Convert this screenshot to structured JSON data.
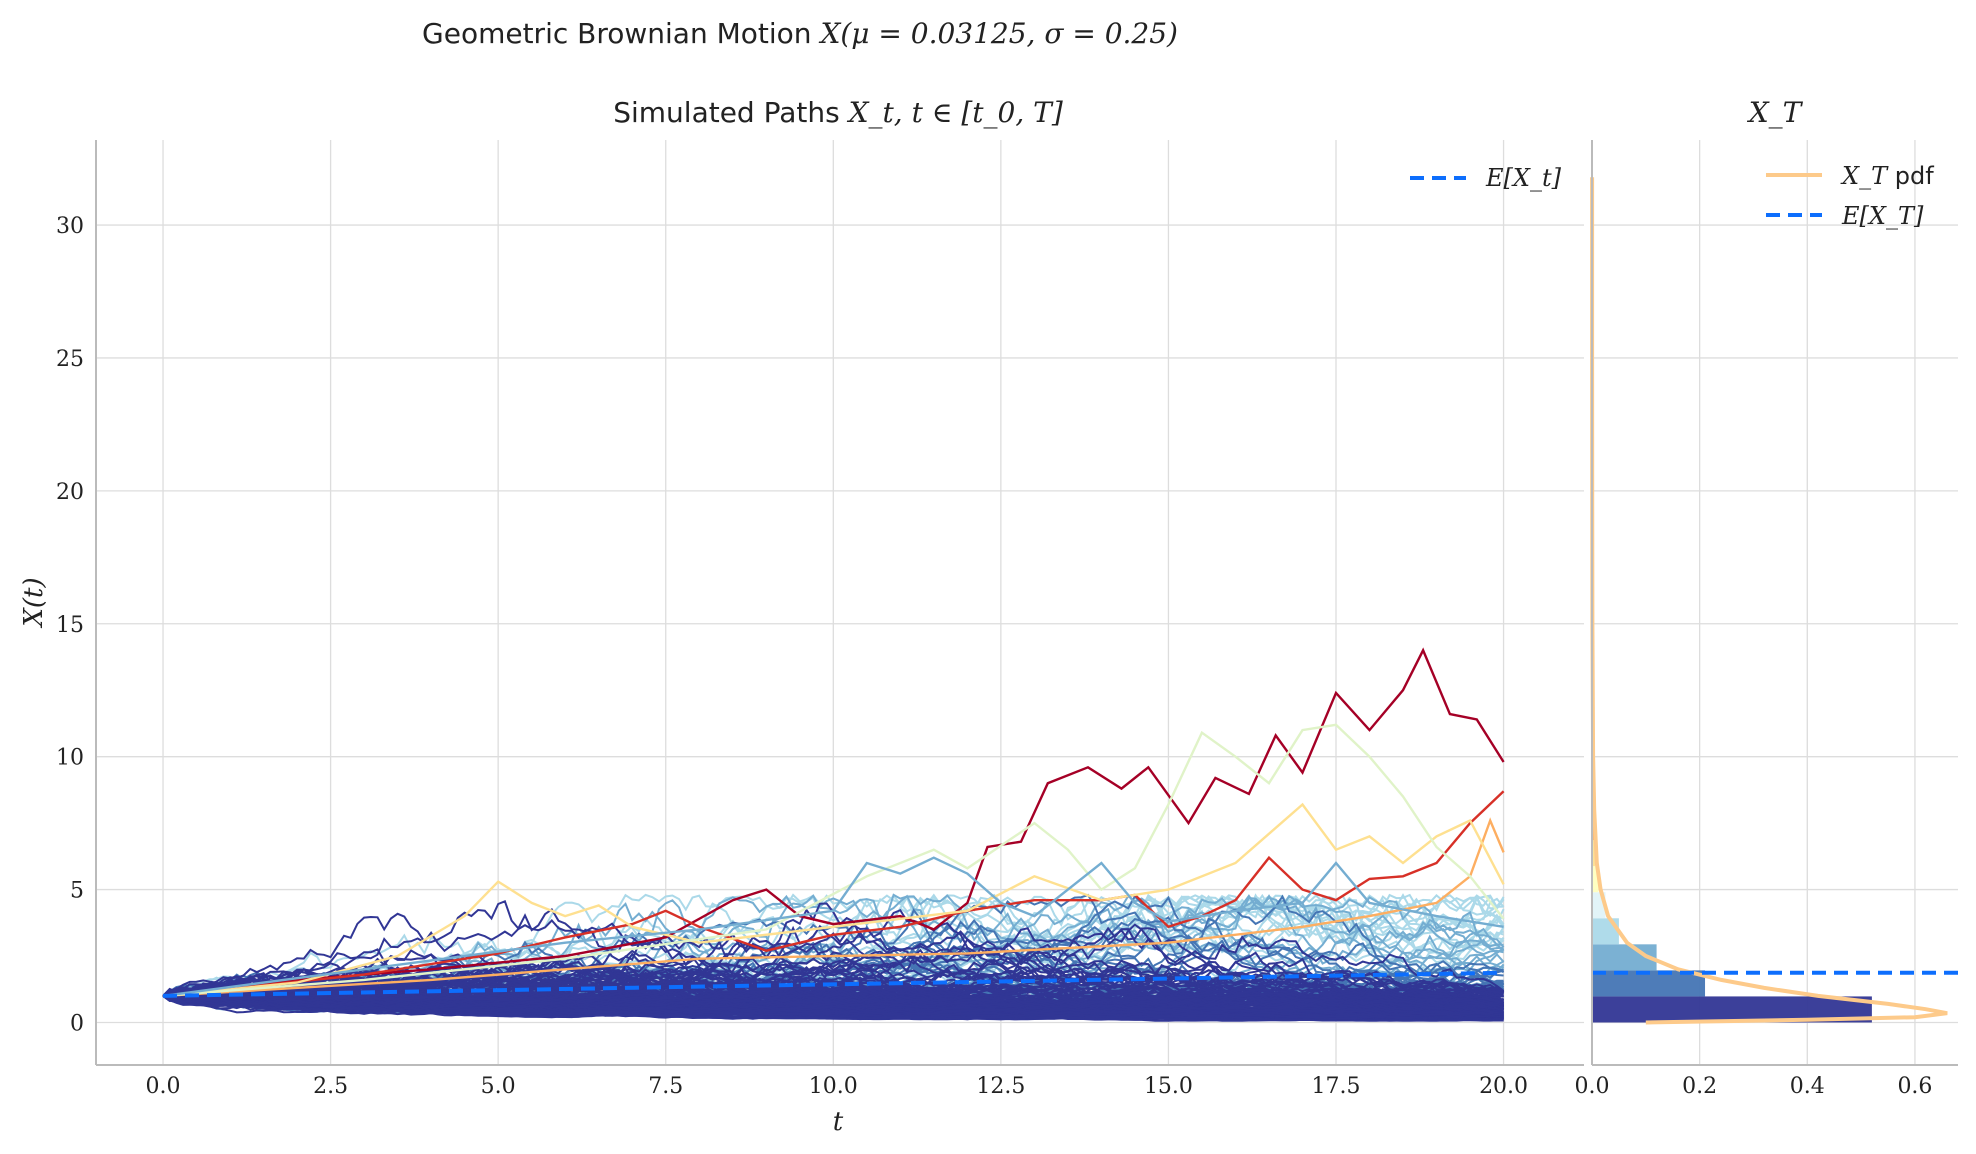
{
  "chart_data": [
    {
      "type": "line",
      "title": "Simulated Paths X_t, t ∈ [t_0, T]",
      "xlabel": "t",
      "ylabel": "X(t)",
      "xlim": [
        -1,
        21.2
      ],
      "ylim": [
        -1.6,
        33.2
      ],
      "xticks": [
        "0.0",
        "2.5",
        "5.0",
        "7.5",
        "10.0",
        "12.5",
        "15.0",
        "17.5",
        "20.0"
      ],
      "yticks": [
        "0",
        "5",
        "10",
        "15",
        "20",
        "25",
        "30"
      ],
      "grid": true,
      "legend_position": "top-right",
      "legend": [
        {
          "label": "E[X_t]",
          "color": "#0d6efd",
          "style": "dashed"
        }
      ],
      "expected": {
        "x": [
          0,
          20
        ],
        "y": [
          1.0,
          1.87
        ]
      },
      "highlighted_paths": [
        {
          "color": "#a50026",
          "x": [
            0,
            2,
            4,
            6,
            7.5,
            8.5,
            9,
            9.5,
            10,
            11,
            11.5,
            12,
            12.3,
            12.8,
            13.2,
            13.8,
            14.3,
            14.7,
            15.3,
            15.7,
            16.2,
            16.6,
            17,
            17.5,
            18,
            18.5,
            18.8,
            19.2,
            19.6,
            20
          ],
          "y": [
            1.0,
            1.6,
            2.0,
            2.5,
            3.2,
            4.6,
            5.0,
            4.0,
            3.7,
            4.0,
            3.5,
            4.5,
            6.6,
            6.8,
            9.0,
            9.6,
            8.8,
            9.6,
            7.5,
            9.2,
            8.6,
            10.8,
            9.4,
            12.4,
            11.0,
            12.5,
            14.0,
            11.6,
            11.4,
            9.8
          ]
        },
        {
          "color": "#d73027",
          "x": [
            0,
            3,
            5,
            6,
            7,
            7.5,
            8,
            9,
            10,
            11,
            12,
            13,
            14,
            14.5,
            15,
            15.5,
            16,
            16.5,
            17,
            17.5,
            18,
            18.5,
            19,
            19.5,
            20
          ],
          "y": [
            1.0,
            1.8,
            2.6,
            3.2,
            3.7,
            4.2,
            3.6,
            2.7,
            3.3,
            3.6,
            4.2,
            4.6,
            4.6,
            4.8,
            3.6,
            4.0,
            4.6,
            6.2,
            5.0,
            4.6,
            5.4,
            5.5,
            6.0,
            7.5,
            8.7
          ]
        },
        {
          "color": "#fdae61",
          "x": [
            0,
            4,
            8,
            12,
            15,
            17,
            18,
            19,
            19.5,
            19.8,
            20
          ],
          "y": [
            1.0,
            1.6,
            2.4,
            2.6,
            3.0,
            3.6,
            4.0,
            4.5,
            5.5,
            7.6,
            6.4
          ]
        },
        {
          "color": "#fee090",
          "x": [
            0,
            2,
            3.5,
            4.5,
            5,
            5.5,
            6,
            6.5,
            7,
            8,
            10,
            12,
            13,
            14,
            15,
            16,
            17,
            17.5,
            18,
            18.5,
            19,
            19.5,
            20
          ],
          "y": [
            1.0,
            1.5,
            2.5,
            4.0,
            5.3,
            4.5,
            4.0,
            4.4,
            3.6,
            3.0,
            3.6,
            4.2,
            5.5,
            4.6,
            5.0,
            6.0,
            8.2,
            6.5,
            7.0,
            6.0,
            7.0,
            7.6,
            5.2
          ]
        },
        {
          "color": "#e0f3c8",
          "x": [
            0,
            3,
            6,
            9,
            10.5,
            11.5,
            12,
            13,
            13.5,
            14,
            14.5,
            15,
            15.5,
            16,
            16.5,
            17,
            17.5,
            18,
            18.5,
            19,
            19.5,
            20
          ],
          "y": [
            1.0,
            1.6,
            2.4,
            3.5,
            5.5,
            6.5,
            5.8,
            7.5,
            6.5,
            5.0,
            5.8,
            8.2,
            10.9,
            10.0,
            9.0,
            11.0,
            11.2,
            10.0,
            8.5,
            6.6,
            5.5,
            3.9
          ]
        },
        {
          "color": "#74add1",
          "x": [
            0,
            3,
            6,
            8,
            10,
            10.5,
            11,
            11.5,
            12,
            12.5,
            13,
            14,
            14.5,
            15,
            16,
            17,
            17.5,
            18,
            19,
            20
          ],
          "y": [
            1.0,
            2.0,
            3.0,
            3.5,
            4.2,
            6.0,
            5.6,
            6.2,
            5.6,
            4.5,
            4.0,
            6.0,
            4.5,
            3.8,
            4.2,
            4.5,
            6.0,
            4.5,
            4.0,
            3.6
          ]
        }
      ]
    },
    {
      "type": "bar",
      "orientation": "horizontal",
      "title": "X_T",
      "xlim": [
        0,
        0.68
      ],
      "xticks": [
        "0.0",
        "0.2",
        "0.4",
        "0.6"
      ],
      "legend_position": "top-right",
      "legend": [
        {
          "label": "X_T pdf",
          "color": "#fdca8a",
          "style": "solid"
        },
        {
          "label": "E[X_T]",
          "color": "#0d6efd",
          "style": "dashed"
        }
      ],
      "bins": [
        {
          "y0": 0.0,
          "y1": 0.98,
          "density": 0.52,
          "color": "#313695"
        },
        {
          "y0": 0.98,
          "y1": 1.96,
          "density": 0.21,
          "color": "#4575b4"
        },
        {
          "y0": 1.96,
          "y1": 2.94,
          "density": 0.12,
          "color": "#74add1"
        },
        {
          "y0": 2.94,
          "y1": 3.92,
          "density": 0.05,
          "color": "#abd9e9"
        },
        {
          "y0": 3.92,
          "y1": 4.9,
          "density": 0.025,
          "color": "#e0f3f8"
        },
        {
          "y0": 4.9,
          "y1": 5.88,
          "density": 0.012,
          "color": "#ffffbf"
        },
        {
          "y0": 5.88,
          "y1": 6.86,
          "density": 0.006,
          "color": "#fee090"
        },
        {
          "y0": 6.86,
          "y1": 7.84,
          "density": 0.004,
          "color": "#fdae61"
        },
        {
          "y0": 7.84,
          "y1": 8.82,
          "density": 0.003,
          "color": "#f46d43"
        },
        {
          "y0": 8.82,
          "y1": 9.8,
          "density": 0.003,
          "color": "#d73027"
        }
      ],
      "pdf": {
        "y": [
          0.0,
          0.1,
          0.2,
          0.35,
          0.5,
          0.7,
          1.0,
          1.3,
          1.6,
          2.0,
          2.5,
          3.0,
          4.0,
          5.0,
          6.0,
          8.0,
          10.0,
          15.0,
          20.0,
          25.0,
          31.8
        ],
        "density": [
          0.1,
          0.4,
          0.6,
          0.66,
          0.62,
          0.55,
          0.42,
          0.32,
          0.24,
          0.16,
          0.1,
          0.065,
          0.03,
          0.016,
          0.009,
          0.004,
          0.002,
          0.0007,
          0.0003,
          0.0002,
          0.0001
        ]
      },
      "expected": 1.87
    }
  ],
  "figure": {
    "suptitle_text": "Geometric Brownian Motion ",
    "suptitle_math": "X(μ = 0.03125, σ = 0.25)",
    "main_title_text": "Simulated Paths ",
    "main_title_math": "X_t, t ∈ [t_0, T]",
    "side_title_math": "X_T",
    "ylabel": "X(t)",
    "xlabel": "t",
    "legend_main": "E[X_t]",
    "legend_pdf_math": "X_T",
    "legend_pdf_text": " pdf",
    "legend_exp": "E[X_T]"
  },
  "palette": [
    "#313695",
    "#4575b4",
    "#74add1",
    "#abd9e9",
    "#e0f3f8",
    "#ffffbf",
    "#fee090",
    "#fdae61",
    "#f46d43",
    "#d73027",
    "#a50026"
  ]
}
